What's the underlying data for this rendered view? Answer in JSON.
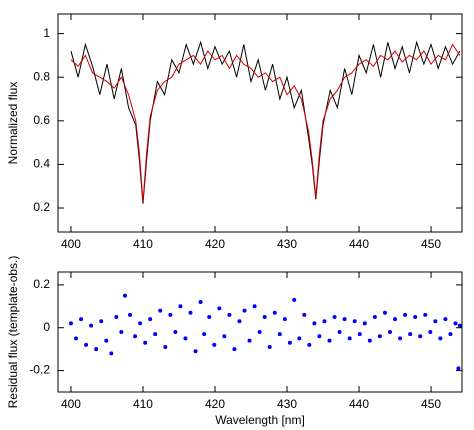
{
  "chart_data": [
    {
      "type": "line",
      "ylabel": "Normalized flux",
      "x": [
        400,
        401,
        402,
        403,
        404,
        405,
        406,
        407,
        408,
        409,
        409.5,
        410,
        410.5,
        411,
        412,
        413,
        414,
        415,
        416,
        417,
        418,
        419,
        420,
        421,
        422,
        423,
        424,
        425,
        426,
        427,
        428,
        429,
        430,
        431,
        432,
        433,
        433.5,
        434,
        434.5,
        435,
        436,
        437,
        438,
        439,
        440,
        441,
        442,
        443,
        444,
        445,
        446,
        447,
        448,
        449,
        450,
        451,
        452,
        453,
        454
      ],
      "series": [
        {
          "color": "#000000",
          "values": [
            0.92,
            0.8,
            0.95,
            0.85,
            0.72,
            0.86,
            0.7,
            0.84,
            0.66,
            0.58,
            0.42,
            0.22,
            0.42,
            0.6,
            0.78,
            0.72,
            0.88,
            0.82,
            0.95,
            0.86,
            0.96,
            0.84,
            0.94,
            0.86,
            0.92,
            0.8,
            0.95,
            0.78,
            0.88,
            0.74,
            0.86,
            0.7,
            0.8,
            0.66,
            0.74,
            0.52,
            0.4,
            0.24,
            0.42,
            0.58,
            0.74,
            0.66,
            0.84,
            0.72,
            0.9,
            0.82,
            0.95,
            0.8,
            0.96,
            0.84,
            0.94,
            0.82,
            0.96,
            0.86,
            0.95,
            0.84,
            0.94,
            0.86,
            0.92
          ]
        },
        {
          "color": "#d40000",
          "values": [
            0.88,
            0.85,
            0.9,
            0.82,
            0.8,
            0.78,
            0.75,
            0.8,
            0.72,
            0.6,
            0.45,
            0.23,
            0.45,
            0.62,
            0.74,
            0.78,
            0.8,
            0.86,
            0.88,
            0.9,
            0.86,
            0.92,
            0.88,
            0.9,
            0.84,
            0.9,
            0.86,
            0.84,
            0.8,
            0.82,
            0.78,
            0.8,
            0.72,
            0.76,
            0.7,
            0.55,
            0.42,
            0.25,
            0.45,
            0.6,
            0.7,
            0.74,
            0.8,
            0.82,
            0.86,
            0.88,
            0.85,
            0.9,
            0.88,
            0.92,
            0.87,
            0.9,
            0.88,
            0.92,
            0.86,
            0.9,
            0.88,
            0.95,
            0.9
          ]
        }
      ],
      "xlim": [
        398.2,
        454.3
      ],
      "xticks": [
        400,
        410,
        420,
        430,
        440,
        450
      ],
      "ylim": [
        0.09,
        1.09
      ],
      "yticks": [
        0.2,
        0.4,
        0.6,
        0.8,
        1
      ]
    },
    {
      "type": "scatter",
      "xlabel": "Wavelength [nm]",
      "ylabel": "Residual flux (template-obs.)",
      "color": "#0000ff",
      "x": [
        400,
        400.7,
        401.4,
        402.1,
        402.8,
        403.5,
        404.2,
        404.9,
        405.6,
        406.3,
        407,
        407.5,
        408.2,
        408.9,
        409.6,
        410.3,
        411,
        411.7,
        412.4,
        413.1,
        413.8,
        414.5,
        415.2,
        415.9,
        416.6,
        417.3,
        418,
        418.5,
        419.2,
        419.9,
        420.6,
        421.3,
        422,
        422.7,
        423.4,
        424.1,
        424.8,
        425.5,
        426.2,
        426.9,
        427.6,
        428.3,
        429,
        429.7,
        430.4,
        431,
        431.7,
        432.4,
        433.1,
        433.8,
        434.5,
        435.2,
        435.9,
        436.6,
        437.3,
        438,
        438.7,
        439.4,
        440.1,
        440.8,
        441.5,
        442.2,
        442.9,
        443.6,
        444.3,
        445,
        445.7,
        446.4,
        447.1,
        447.8,
        448.5,
        449.2,
        449.9,
        450.6,
        451.3,
        452,
        452.7,
        453.4,
        453.8,
        454
      ],
      "values": [
        0.02,
        -0.05,
        0.04,
        -0.08,
        0.01,
        -0.1,
        0.03,
        -0.06,
        -0.12,
        0.05,
        -0.02,
        0.15,
        0.06,
        -0.04,
        0.02,
        -0.07,
        0.04,
        -0.03,
        0.08,
        -0.09,
        0.06,
        -0.02,
        0.1,
        -0.05,
        0.07,
        -0.11,
        0.12,
        -0.03,
        0.05,
        -0.08,
        0.09,
        -0.04,
        0.06,
        -0.1,
        0.03,
        0.08,
        -0.06,
        0.1,
        -0.02,
        0.05,
        -0.09,
        0.07,
        -0.03,
        0.04,
        -0.07,
        0.13,
        -0.05,
        0.06,
        -0.08,
        0.02,
        -0.04,
        0.03,
        -0.06,
        0.05,
        -0.02,
        0.04,
        -0.05,
        0.03,
        -0.03,
        0.02,
        -0.06,
        0.05,
        -0.04,
        0.07,
        -0.02,
        0.04,
        -0.05,
        0.06,
        -0.03,
        0.05,
        -0.04,
        0.06,
        -0.02,
        0.03,
        -0.05,
        0.04,
        -0.03,
        0.02,
        -0.19,
        0.01
      ],
      "xlim": [
        398.2,
        454.3
      ],
      "xticks": [
        400,
        410,
        420,
        430,
        440,
        450
      ],
      "ylim": [
        -0.3,
        0.26
      ],
      "yticks": [
        -0.2,
        0,
        0.2
      ]
    }
  ]
}
